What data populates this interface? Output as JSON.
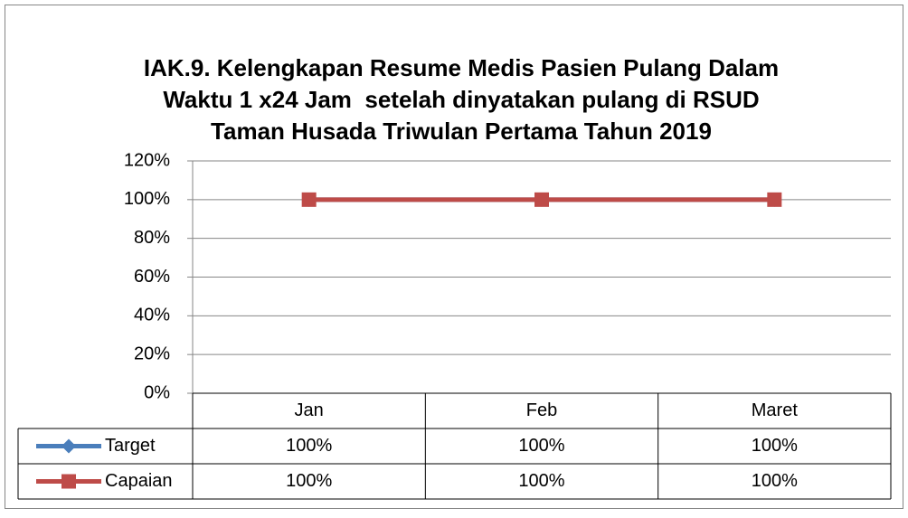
{
  "chart_data": {
    "type": "line",
    "title": [
      "IAK.9. Kelengkapan Resume Medis Pasien Pulang Dalam",
      "Waktu 1 x24 Jam  setelah dinyatakan pulang di RSUD",
      "Taman Husada Triwulan Pertama Tahun 2019"
    ],
    "categories": [
      "Jan",
      "Feb",
      "Maret"
    ],
    "series": [
      {
        "name": "Target",
        "color": "#4a7ebb",
        "marker": "diamond",
        "values": [
          100,
          100,
          100
        ],
        "value_labels": [
          "100%",
          "100%",
          "100%"
        ]
      },
      {
        "name": "Capaian",
        "color": "#be4b48",
        "marker": "square",
        "values": [
          100,
          100,
          100
        ],
        "value_labels": [
          "100%",
          "100%",
          "100%"
        ]
      }
    ],
    "ylim": [
      0,
      120
    ],
    "yticks": [
      {
        "value": 0,
        "label": "0%"
      },
      {
        "value": 20,
        "label": "20%"
      },
      {
        "value": 40,
        "label": "40%"
      },
      {
        "value": 60,
        "label": "60%"
      },
      {
        "value": 80,
        "label": "80%"
      },
      {
        "value": 100,
        "label": "100%"
      },
      {
        "value": 120,
        "label": "120%"
      }
    ],
    "grid": true,
    "data_table": true
  }
}
